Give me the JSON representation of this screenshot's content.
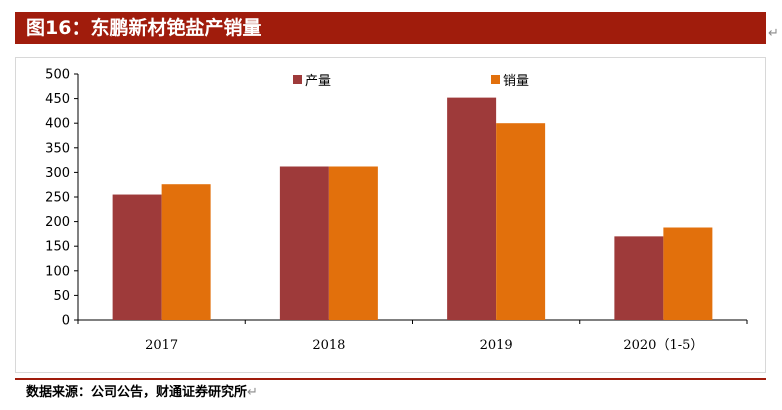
{
  "title": "图16：东鹏新材铯盐产销量",
  "return_mark": "↵",
  "source": "数据来源：公司公告，财通证券研究所",
  "colors": {
    "title_bar": "#a01c0c",
    "production": "#9e3a3a",
    "sales": "#e2700c"
  },
  "chart_data": {
    "type": "bar",
    "categories": [
      "2017",
      "2018",
      "2019",
      "2020（1-5）"
    ],
    "series": [
      {
        "name": "产量",
        "values": [
          255,
          312,
          452,
          170
        ]
      },
      {
        "name": "销量",
        "values": [
          276,
          312,
          400,
          188
        ]
      }
    ],
    "ylim": [
      0,
      500
    ],
    "yticks": [
      0,
      50,
      100,
      150,
      200,
      250,
      300,
      350,
      400,
      450,
      500
    ],
    "xlabel": "",
    "ylabel": "",
    "legend": "top-center",
    "grid": false
  }
}
